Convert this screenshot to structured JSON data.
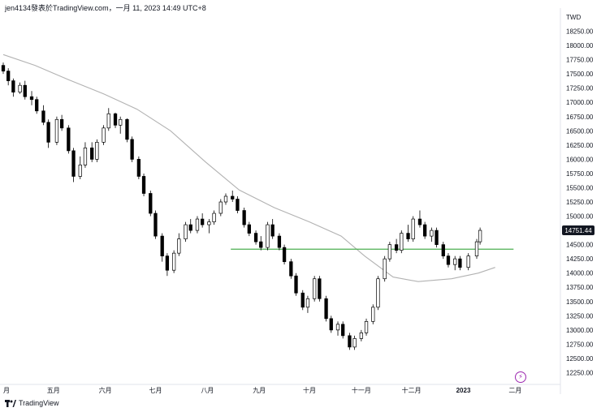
{
  "header": {
    "text": "jen4134發表於TradingView.com，一月 11, 2023 14:49 UTC+8"
  },
  "footer": {
    "brand": "TradingView"
  },
  "icons": {
    "logo": "tradingview-logo-icon",
    "badge": "lightning-icon",
    "badge_glyph": "⚡"
  },
  "colors": {
    "candle_fill_up": "#ffffff",
    "candle_fill_down": "#000000",
    "candle_stroke": "#000000",
    "moving_average": "#b2b2b2",
    "support_line": "#4caf50",
    "price_label_bg": "#131722",
    "badge": "#9c27b0"
  },
  "chart_data": {
    "type": "candlestick",
    "currency": "TWD",
    "price_label": "14751.44",
    "ylim": [
      12100,
      18600
    ],
    "yticks": [
      "18250.00",
      "18000.00",
      "17750.00",
      "17500.00",
      "17250.00",
      "17000.00",
      "16750.00",
      "16500.00",
      "16250.00",
      "16000.00",
      "15750.00",
      "15500.00",
      "15250.00",
      "15000.00",
      "14750.00",
      "14500.00",
      "14250.00",
      "14000.00",
      "13750.00",
      "13500.00",
      "13250.00",
      "13000.00",
      "12750.00",
      "12500.00",
      "12250.00"
    ],
    "ytick_values": [
      18250,
      18000,
      17750,
      17500,
      17250,
      17000,
      16750,
      16500,
      16250,
      16000,
      15750,
      15500,
      15250,
      15000,
      14750,
      14500,
      14250,
      14000,
      13750,
      13500,
      13250,
      13000,
      12750,
      12500,
      12250
    ],
    "x_range": [
      "2022-04-01",
      "2023-02-28"
    ],
    "xticks": [
      {
        "label": "月",
        "date": "2022-04-01"
      },
      {
        "label": "五月",
        "date": "2022-05-01"
      },
      {
        "label": "六月",
        "date": "2022-06-01"
      },
      {
        "label": "七月",
        "date": "2022-07-01"
      },
      {
        "label": "八月",
        "date": "2022-08-01"
      },
      {
        "label": "九月",
        "date": "2022-09-01"
      },
      {
        "label": "十月",
        "date": "2022-10-01"
      },
      {
        "label": "十一月",
        "date": "2022-11-01"
      },
      {
        "label": "十二月",
        "date": "2022-12-01"
      },
      {
        "label": "2023",
        "date": "2023-01-01"
      },
      {
        "label": "二月",
        "date": "2023-02-01"
      }
    ],
    "support_line": {
      "value": 14420,
      "from": "2022-08-15",
      "to": "2023-01-31"
    },
    "moving_average": [
      [
        "2022-04-01",
        17840
      ],
      [
        "2022-04-20",
        17650
      ],
      [
        "2022-05-10",
        17400
      ],
      [
        "2022-05-31",
        17150
      ],
      [
        "2022-06-20",
        16880
      ],
      [
        "2022-07-10",
        16500
      ],
      [
        "2022-07-31",
        15950
      ],
      [
        "2022-08-20",
        15460
      ],
      [
        "2022-09-10",
        15150
      ],
      [
        "2022-10-01",
        14900
      ],
      [
        "2022-10-20",
        14650
      ],
      [
        "2022-11-03",
        14300
      ],
      [
        "2022-11-20",
        13930
      ],
      [
        "2022-12-05",
        13850
      ],
      [
        "2022-12-25",
        13900
      ],
      [
        "2023-01-10",
        14000
      ],
      [
        "2023-01-20",
        14100
      ]
    ],
    "candles": [
      [
        "2022-04-01",
        17650,
        17700,
        17500,
        17550
      ],
      [
        "2022-04-04",
        17550,
        17600,
        17300,
        17380
      ],
      [
        "2022-04-07",
        17380,
        17420,
        17100,
        17180
      ],
      [
        "2022-04-11",
        17180,
        17350,
        17150,
        17300
      ],
      [
        "2022-04-14",
        17300,
        17380,
        17050,
        17100
      ],
      [
        "2022-04-18",
        17100,
        17200,
        16950,
        17050
      ],
      [
        "2022-04-21",
        17050,
        17100,
        16800,
        16850
      ],
      [
        "2022-04-25",
        16850,
        16950,
        16600,
        16650
      ],
      [
        "2022-04-28",
        16650,
        16700,
        16200,
        16300
      ],
      [
        "2022-05-03",
        16300,
        16750,
        16250,
        16700
      ],
      [
        "2022-05-06",
        16700,
        16780,
        16500,
        16550
      ],
      [
        "2022-05-10",
        16550,
        16600,
        16100,
        16150
      ],
      [
        "2022-05-13",
        16150,
        16200,
        15600,
        15700
      ],
      [
        "2022-05-17",
        15700,
        16050,
        15650,
        15900
      ],
      [
        "2022-05-20",
        15900,
        16300,
        15850,
        16200
      ],
      [
        "2022-05-24",
        16200,
        16300,
        15950,
        16000
      ],
      [
        "2022-05-27",
        16000,
        16350,
        15950,
        16300
      ],
      [
        "2022-05-31",
        16300,
        16600,
        16250,
        16550
      ],
      [
        "2022-06-03",
        16550,
        16900,
        16500,
        16800
      ],
      [
        "2022-06-07",
        16800,
        16820,
        16550,
        16600
      ],
      [
        "2022-06-10",
        16600,
        16750,
        16450,
        16700
      ],
      [
        "2022-06-14",
        16700,
        16720,
        16300,
        16350
      ],
      [
        "2022-06-17",
        16350,
        16400,
        15950,
        16000
      ],
      [
        "2022-06-21",
        16000,
        16050,
        15650,
        15700
      ],
      [
        "2022-06-24",
        15700,
        15750,
        15350,
        15400
      ],
      [
        "2022-06-28",
        15400,
        15450,
        15000,
        15050
      ],
      [
        "2022-07-01",
        15050,
        15100,
        14600,
        14650
      ],
      [
        "2022-07-05",
        14650,
        14700,
        14200,
        14300
      ],
      [
        "2022-07-08",
        14300,
        14350,
        13950,
        14050
      ],
      [
        "2022-07-12",
        14050,
        14400,
        14000,
        14350
      ],
      [
        "2022-07-15",
        14350,
        14700,
        14300,
        14600
      ],
      [
        "2022-07-19",
        14600,
        14900,
        14550,
        14850
      ],
      [
        "2022-07-22",
        14850,
        14950,
        14700,
        14750
      ],
      [
        "2022-07-26",
        14750,
        15000,
        14700,
        14950
      ],
      [
        "2022-07-29",
        14950,
        15050,
        14800,
        14850
      ],
      [
        "2022-08-02",
        14850,
        14950,
        14700,
        14900
      ],
      [
        "2022-08-05",
        14900,
        15100,
        14850,
        15050
      ],
      [
        "2022-08-09",
        15050,
        15300,
        15000,
        15250
      ],
      [
        "2022-08-12",
        15250,
        15400,
        15200,
        15350
      ],
      [
        "2022-08-16",
        15350,
        15450,
        15250,
        15300
      ],
      [
        "2022-08-19",
        15300,
        15350,
        15050,
        15100
      ],
      [
        "2022-08-23",
        15100,
        15150,
        14800,
        14850
      ],
      [
        "2022-08-26",
        14850,
        14900,
        14650,
        14700
      ],
      [
        "2022-08-30",
        14700,
        14750,
        14500,
        14550
      ],
      [
        "2022-09-02",
        14550,
        14650,
        14400,
        14450
      ],
      [
        "2022-09-06",
        14450,
        14900,
        14400,
        14850
      ],
      [
        "2022-09-09",
        14850,
        14950,
        14600,
        14650
      ],
      [
        "2022-09-13",
        14650,
        14700,
        14400,
        14450
      ],
      [
        "2022-09-16",
        14450,
        14500,
        14150,
        14200
      ],
      [
        "2022-09-20",
        14200,
        14250,
        13900,
        13950
      ],
      [
        "2022-09-23",
        13950,
        14000,
        13600,
        13650
      ],
      [
        "2022-09-27",
        13650,
        13700,
        13350,
        13400
      ],
      [
        "2022-09-30",
        13400,
        13600,
        13300,
        13550
      ],
      [
        "2022-10-04",
        13550,
        13950,
        13500,
        13900
      ],
      [
        "2022-10-07",
        13900,
        13950,
        13500,
        13550
      ],
      [
        "2022-10-11",
        13550,
        13600,
        13150,
        13200
      ],
      [
        "2022-10-14",
        13200,
        13250,
        12950,
        13000
      ],
      [
        "2022-10-18",
        13000,
        13150,
        12900,
        13100
      ],
      [
        "2022-10-21",
        13100,
        13150,
        12850,
        12900
      ],
      [
        "2022-10-25",
        12900,
        12950,
        12650,
        12700
      ],
      [
        "2022-10-28",
        12700,
        12900,
        12650,
        12850
      ],
      [
        "2022-11-01",
        12850,
        13000,
        12800,
        12950
      ],
      [
        "2022-11-04",
        12950,
        13200,
        12900,
        13150
      ],
      [
        "2022-11-08",
        13150,
        13450,
        13100,
        13400
      ],
      [
        "2022-11-11",
        13400,
        13950,
        13350,
        13900
      ],
      [
        "2022-11-15",
        13900,
        14300,
        13850,
        14250
      ],
      [
        "2022-11-18",
        14250,
        14550,
        14200,
        14500
      ],
      [
        "2022-11-22",
        14500,
        14600,
        14350,
        14400
      ],
      [
        "2022-11-25",
        14400,
        14750,
        14350,
        14700
      ],
      [
        "2022-11-29",
        14700,
        14850,
        14550,
        14600
      ],
      [
        "2022-12-02",
        14600,
        15000,
        14550,
        14950
      ],
      [
        "2022-12-06",
        14950,
        15100,
        14800,
        14850
      ],
      [
        "2022-12-09",
        14850,
        14900,
        14600,
        14650
      ],
      [
        "2022-12-13",
        14650,
        14800,
        14550,
        14750
      ],
      [
        "2022-12-16",
        14750,
        14800,
        14450,
        14500
      ],
      [
        "2022-12-20",
        14500,
        14550,
        14250,
        14300
      ],
      [
        "2022-12-23",
        14300,
        14350,
        14100,
        14150
      ],
      [
        "2022-12-27",
        14150,
        14300,
        14050,
        14250
      ],
      [
        "2022-12-30",
        14250,
        14300,
        14050,
        14100
      ],
      [
        "2023-01-04",
        14100,
        14350,
        14050,
        14300
      ],
      [
        "2023-01-09",
        14300,
        14600,
        14250,
        14550
      ],
      [
        "2023-01-11",
        14550,
        14800,
        14500,
        14751
      ]
    ]
  }
}
